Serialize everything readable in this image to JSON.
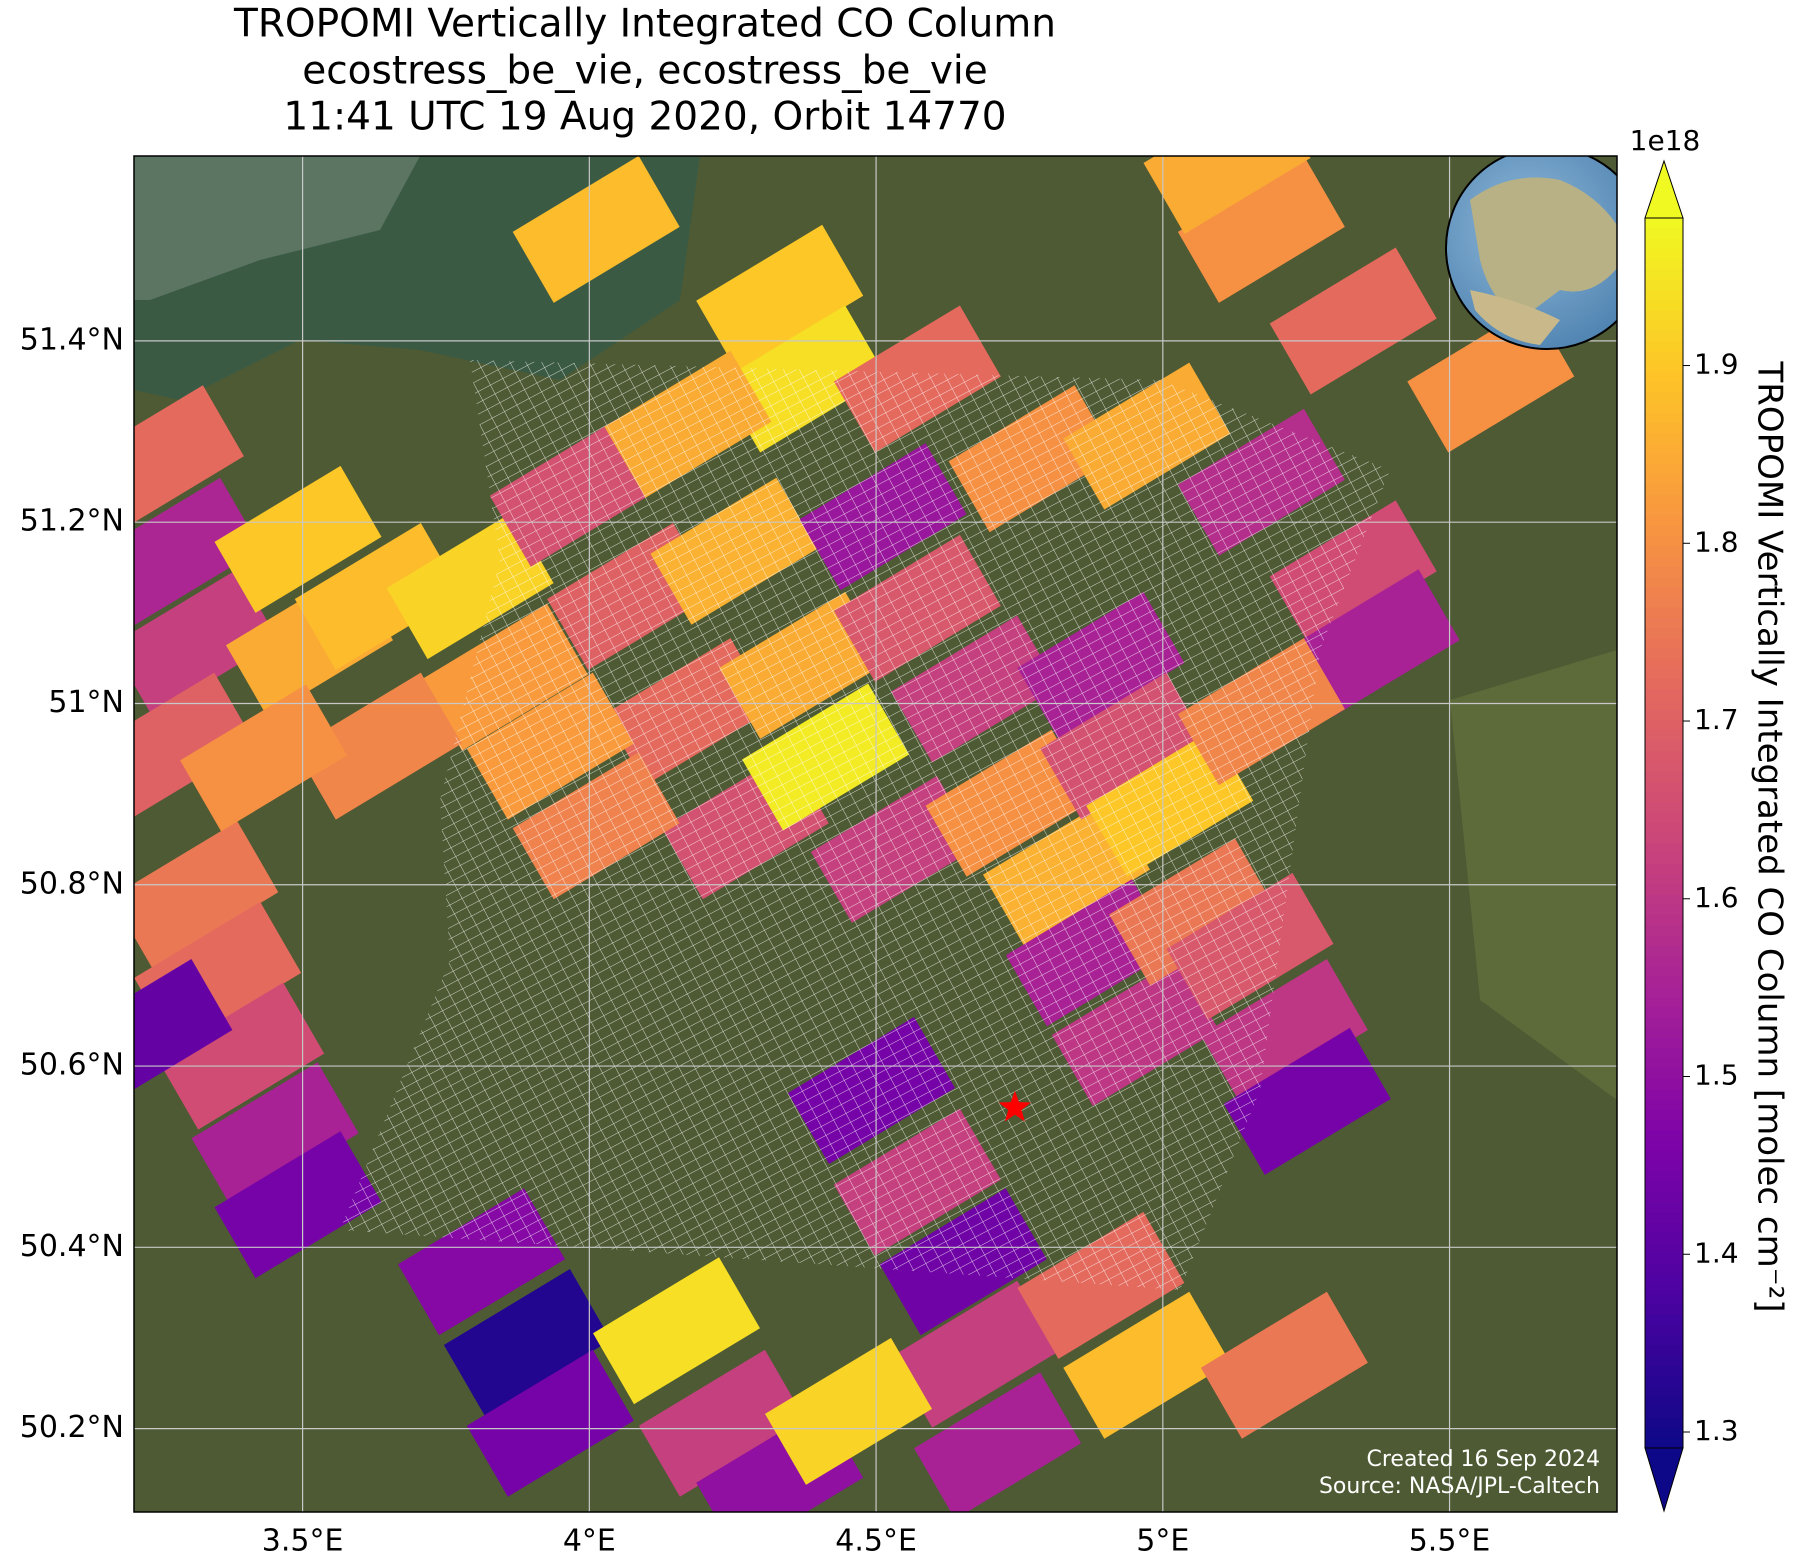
{
  "title_lines": [
    "TROPOMI Vertically Integrated CO Column",
    "ecostress_be_vie, ecostress_be_vie",
    "11:41 UTC 19 Aug 2020, Orbit 14770"
  ],
  "map": {
    "xlim": [
      3.206,
      5.792
    ],
    "ylim": [
      50.108,
      51.604
    ],
    "xticks": [
      {
        "value": 3.5,
        "label": "3.5°E"
      },
      {
        "value": 4.0,
        "label": "4°E"
      },
      {
        "value": 4.5,
        "label": "4.5°E"
      },
      {
        "value": 5.0,
        "label": "5°E"
      },
      {
        "value": 5.5,
        "label": "5.5°E"
      }
    ],
    "yticks": [
      {
        "value": 50.2,
        "label": "50.2°N"
      },
      {
        "value": 50.4,
        "label": "50.4°N"
      },
      {
        "value": 50.6,
        "label": "50.6°N"
      },
      {
        "value": 50.8,
        "label": "50.8°N"
      },
      {
        "value": 51.0,
        "label": "51°N"
      },
      {
        "value": 51.2,
        "label": "51.2°N"
      },
      {
        "value": 51.4,
        "label": "51.4°N"
      }
    ],
    "grid": true,
    "site": {
      "lon": 4.742,
      "lat": 50.554,
      "color": "#ff0000"
    },
    "pixels": [
      {
        "lon": 3.252,
        "lat": 51.27,
        "value": 1.72
      },
      {
        "lon": 3.282,
        "lat": 51.168,
        "value": 1.56
      },
      {
        "lon": 3.312,
        "lat": 51.067,
        "value": 1.62
      },
      {
        "lon": 3.272,
        "lat": 50.953,
        "value": 1.7
      },
      {
        "lon": 3.312,
        "lat": 50.789,
        "value": 1.75
      },
      {
        "lon": 3.352,
        "lat": 50.7,
        "value": 1.72
      },
      {
        "lon": 3.392,
        "lat": 50.611,
        "value": 1.65
      },
      {
        "lon": 3.452,
        "lat": 50.523,
        "value": 1.55
      },
      {
        "lon": 3.492,
        "lat": 50.447,
        "value": 1.45
      },
      {
        "lon": 3.232,
        "lat": 50.637,
        "value": 1.42
      },
      {
        "lon": 3.492,
        "lat": 51.181,
        "value": 1.9
      },
      {
        "lon": 3.512,
        "lat": 51.067,
        "value": 1.85
      },
      {
        "lon": 3.632,
        "lat": 51.118,
        "value": 1.88
      },
      {
        "lon": 3.792,
        "lat": 51.13,
        "value": 1.92
      },
      {
        "lon": 3.852,
        "lat": 51.029,
        "value": 1.82
      },
      {
        "lon": 3.632,
        "lat": 50.953,
        "value": 1.78
      },
      {
        "lon": 3.432,
        "lat": 50.94,
        "value": 1.8
      },
      {
        "lon": 3.972,
        "lat": 51.232,
        "value": 1.66
      },
      {
        "lon": 4.072,
        "lat": 51.118,
        "value": 1.7
      },
      {
        "lon": 4.172,
        "lat": 50.991,
        "value": 1.72
      },
      {
        "lon": 4.272,
        "lat": 50.865,
        "value": 1.66
      },
      {
        "lon": 3.932,
        "lat": 50.953,
        "value": 1.82
      },
      {
        "lon": 4.012,
        "lat": 50.865,
        "value": 1.77
      },
      {
        "lon": 4.252,
        "lat": 51.168,
        "value": 1.86
      },
      {
        "lon": 4.372,
        "lat": 51.042,
        "value": 1.85
      },
      {
        "lon": 4.412,
        "lat": 50.941,
        "value": 1.96
      },
      {
        "lon": 4.512,
        "lat": 51.206,
        "value": 1.52
      },
      {
        "lon": 4.572,
        "lat": 51.105,
        "value": 1.68
      },
      {
        "lon": 4.672,
        "lat": 51.016,
        "value": 1.62
      },
      {
        "lon": 4.532,
        "lat": 50.839,
        "value": 1.62
      },
      {
        "lon": 4.732,
        "lat": 50.89,
        "value": 1.8
      },
      {
        "lon": 4.832,
        "lat": 50.814,
        "value": 1.86
      },
      {
        "lon": 4.892,
        "lat": 51.042,
        "value": 1.55
      },
      {
        "lon": 4.932,
        "lat": 50.953,
        "value": 1.66
      },
      {
        "lon": 5.012,
        "lat": 50.89,
        "value": 1.9
      },
      {
        "lon": 4.872,
        "lat": 50.725,
        "value": 1.55
      },
      {
        "lon": 4.952,
        "lat": 50.637,
        "value": 1.6
      },
      {
        "lon": 5.052,
        "lat": 50.77,
        "value": 1.75
      },
      {
        "lon": 5.152,
        "lat": 50.732,
        "value": 1.68
      },
      {
        "lon": 5.212,
        "lat": 50.637,
        "value": 1.6
      },
      {
        "lon": 5.252,
        "lat": 50.561,
        "value": 1.45
      },
      {
        "lon": 4.492,
        "lat": 50.573,
        "value": 1.45
      },
      {
        "lon": 4.572,
        "lat": 50.472,
        "value": 1.62
      },
      {
        "lon": 4.652,
        "lat": 50.384,
        "value": 1.44
      },
      {
        "lon": 4.672,
        "lat": 50.282,
        "value": 1.62
      },
      {
        "lon": 4.712,
        "lat": 50.181,
        "value": 1.55
      },
      {
        "lon": 4.892,
        "lat": 50.358,
        "value": 1.72
      },
      {
        "lon": 4.972,
        "lat": 50.27,
        "value": 1.88
      },
      {
        "lon": 5.212,
        "lat": 50.27,
        "value": 1.75
      },
      {
        "lon": 3.812,
        "lat": 50.384,
        "value": 1.48
      },
      {
        "lon": 3.892,
        "lat": 50.295,
        "value": 1.32
      },
      {
        "lon": 3.932,
        "lat": 50.206,
        "value": 1.45
      },
      {
        "lon": 4.152,
        "lat": 50.308,
        "value": 1.94
      },
      {
        "lon": 4.232,
        "lat": 50.206,
        "value": 1.62
      },
      {
        "lon": 4.332,
        "lat": 50.143,
        "value": 1.5
      },
      {
        "lon": 4.452,
        "lat": 50.219,
        "value": 1.92
      },
      {
        "lon": 4.012,
        "lat": 51.523,
        "value": 1.88
      },
      {
        "lon": 4.332,
        "lat": 51.447,
        "value": 1.9
      },
      {
        "lon": 4.372,
        "lat": 51.358,
        "value": 1.94
      },
      {
        "lon": 4.172,
        "lat": 51.308,
        "value": 1.85
      },
      {
        "lon": 4.572,
        "lat": 51.358,
        "value": 1.72
      },
      {
        "lon": 4.772,
        "lat": 51.27,
        "value": 1.8
      },
      {
        "lon": 4.972,
        "lat": 51.295,
        "value": 1.85
      },
      {
        "lon": 5.172,
        "lat": 51.523,
        "value": 1.8
      },
      {
        "lon": 5.332,
        "lat": 51.422,
        "value": 1.72
      },
      {
        "lon": 5.572,
        "lat": 51.358,
        "value": 1.8
      },
      {
        "lon": 5.172,
        "lat": 51.244,
        "value": 1.58
      },
      {
        "lon": 5.332,
        "lat": 51.143,
        "value": 1.65
      },
      {
        "lon": 5.372,
        "lat": 51.067,
        "value": 1.55
      },
      {
        "lon": 5.172,
        "lat": 50.991,
        "value": 1.78
      },
      {
        "lon": 5.112,
        "lat": 51.599,
        "value": 1.85
      }
    ]
  },
  "colorbar": {
    "label": "TROPOMI Vertically Integrated CO Column [molec cm⁻²]",
    "offset_label": "1e18",
    "colormap": "plasma",
    "clim": [
      1.291,
      1.983
    ],
    "ticks": [
      1.3,
      1.4,
      1.5,
      1.6,
      1.7,
      1.8,
      1.9
    ]
  },
  "credits": [
    "Created 16 Sep 2024",
    "Source: NASA/JPL-Caltech"
  ]
}
